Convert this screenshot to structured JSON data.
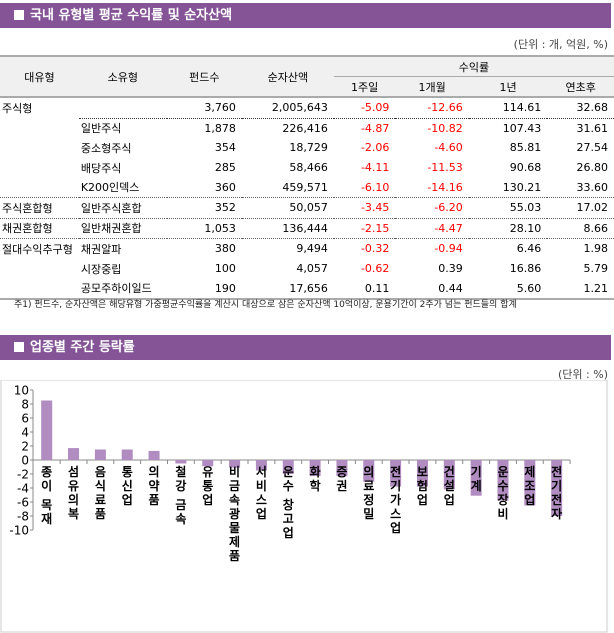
{
  "section1": {
    "title": "국내 유형별 평균 수익률 및 순자산액",
    "unit": "(단위 : 개, 억원, %)"
  },
  "table": {
    "headers": {
      "major": "대유형",
      "minor": "소유형",
      "count": "펀드수",
      "nav": "순자산액",
      "returns": "수익률",
      "w1": "1주일",
      "m1": "1개월",
      "y1": "1년",
      "ytd": "연초후"
    },
    "rows": [
      [
        "주식형",
        "",
        "3,760",
        "2,005,643",
        "-5.09",
        "-12.66",
        "114.61",
        "32.68"
      ],
      [
        "",
        "일반주식",
        "1,878",
        "226,416",
        "-4.87",
        "-10.82",
        "107.43",
        "31.61"
      ],
      [
        "",
        "중소형주식",
        "354",
        "18,729",
        "-2.06",
        "-4.60",
        "85.81",
        "27.54"
      ],
      [
        "",
        "배당주식",
        "285",
        "58,466",
        "-4.11",
        "-11.53",
        "90.68",
        "26.80"
      ],
      [
        "",
        "K200인덱스",
        "360",
        "459,571",
        "-6.10",
        "-14.16",
        "130.21",
        "33.60"
      ],
      [
        "주식혼합형",
        "일반주식혼합",
        "352",
        "50,057",
        "-3.45",
        "-6.20",
        "55.03",
        "17.02"
      ],
      [
        "채권혼합형",
        "일반채권혼합",
        "1,053",
        "136,444",
        "-2.15",
        "-4.47",
        "28.10",
        "8.66"
      ],
      [
        "절대수익추구형",
        "채권알파",
        "380",
        "9,494",
        "-0.32",
        "-0.94",
        "6.46",
        "1.98"
      ],
      [
        "",
        "시장중립",
        "100",
        "4,057",
        "-0.62",
        "0.39",
        "16.86",
        "5.79"
      ],
      [
        "",
        "공모주하이일드",
        "190",
        "17,656",
        "0.11",
        "0.44",
        "5.60",
        "1.21"
      ]
    ],
    "note": "주1) 펀드수, 순자산액은 해당유형 가중평균수익률을 계산시 대상으로 삼은 순자산액 10억이상, 운용기간이 2주가 넘는 펀드들의 합계",
    "negative_color": "#ff0000"
  },
  "section2": {
    "title": "업종별 주간 등락률",
    "unit": "(단위 : %)"
  },
  "chart_data": {
    "type": "bar",
    "categories": [
      "종이 목재",
      "섬유의복",
      "음식료품",
      "통신업",
      "의약품",
      "철강 금속",
      "유통업",
      "비금속광물제품",
      "서비스업",
      "운수 창고업",
      "화학",
      "증권",
      "의료정밀",
      "전기가스업",
      "보험업",
      "건설업",
      "기계",
      "운수장비",
      "제조업",
      "전기전자"
    ],
    "values": [
      8.5,
      1.7,
      1.5,
      1.5,
      1.3,
      -0.5,
      -0.9,
      -1.1,
      -1.5,
      -2.0,
      -2.3,
      -2.3,
      -3.1,
      -3.8,
      -3.8,
      -4.2,
      -5.1,
      -5.8,
      -6.5,
      -8.0
    ],
    "yticks": [
      "10",
      "8",
      "6",
      "4",
      "2",
      "0",
      "-2",
      "-4",
      "-6",
      "-8",
      "-10"
    ],
    "ylim": [
      -10,
      10
    ],
    "bar_color": "#b08cc0",
    "grid": false
  },
  "colors": {
    "header_bg": "#845497"
  }
}
